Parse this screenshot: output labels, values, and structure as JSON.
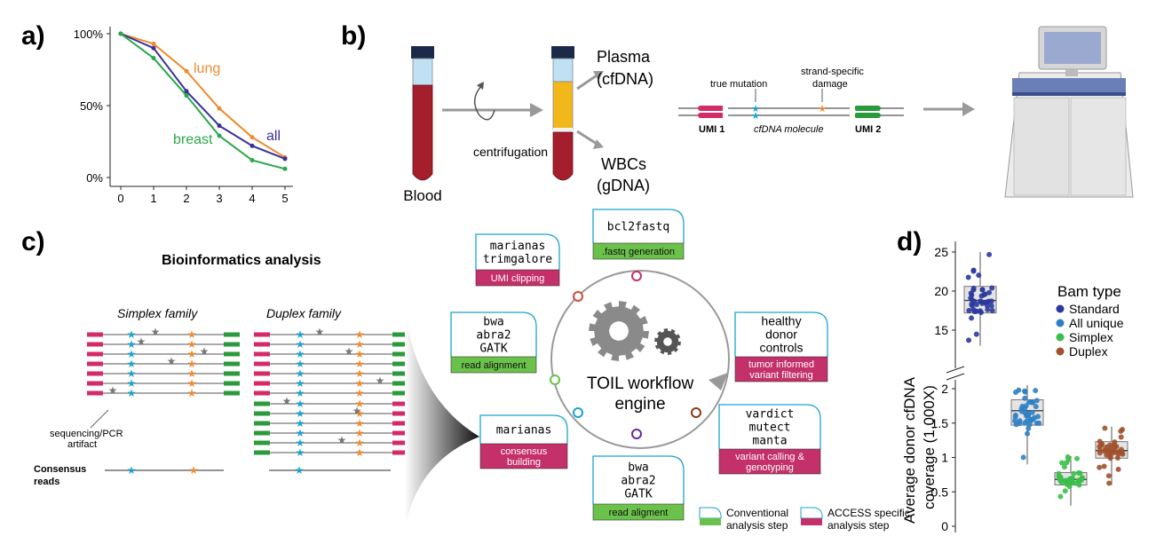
{
  "panels": {
    "a": "a)",
    "b": "b)",
    "c": "c)",
    "d": "d)"
  },
  "colors": {
    "lung": "#f08a2c",
    "all": "#3a2f9c",
    "breast": "#2aa84a",
    "umi": "#d42a6a",
    "green": "#2a9a3a",
    "cyan": "#1aa3d0",
    "orange": "#f08a2c",
    "step_green": "#6ac24a",
    "step_magenta": "#c4306a"
  },
  "panel_a": {
    "chart_data": {
      "type": "line",
      "x": [
        0,
        1,
        2,
        3,
        4,
        5
      ],
      "y_ticks": [
        "100%",
        "50%",
        "0%"
      ],
      "ylim": [
        0,
        100
      ],
      "series": [
        {
          "name": "lung",
          "values": [
            100,
            93,
            74,
            48,
            28,
            14
          ]
        },
        {
          "name": "all",
          "values": [
            100,
            90,
            60,
            36,
            22,
            13
          ]
        },
        {
          "name": "breast",
          "values": [
            100,
            83,
            57,
            29,
            12,
            6
          ]
        }
      ]
    }
  },
  "panel_b": {
    "blood": "Blood",
    "centrifugation": "centrifugation",
    "plasma": "Plasma",
    "cfdna": "(cfDNA)",
    "wbcs": "WBCs",
    "gdna": "(gDNA)",
    "true_mutation": "true mutation",
    "strand_damage_1": "strand-specific",
    "strand_damage_2": "damage",
    "umi1": "UMI 1",
    "molecule": "cfDNA molecule",
    "umi2": "UMI 2"
  },
  "panel_c": {
    "title": "Bioinformatics analysis",
    "simplex": "Simplex family",
    "duplex": "Duplex family",
    "artifact_1": "sequencing/PCR",
    "artifact_2": "artifact",
    "consensus_1": "Consensus",
    "consensus_2": "reads",
    "engine_1": "TOIL workflow",
    "engine_2": "engine",
    "steps": [
      {
        "tools": [
          "marianas",
          "trimgalore"
        ],
        "label": "UMI clipping",
        "kind": "access"
      },
      {
        "tools": [
          "bcl2fastq"
        ],
        "label": ".fastq generation",
        "kind": "conventional"
      },
      {
        "tools": [
          "bwa",
          "abra2",
          "GATK"
        ],
        "label": "read alignment",
        "kind": "conventional"
      },
      {
        "tools": [
          "healthy",
          "donor",
          "controls"
        ],
        "label_lines": [
          "tumor informed",
          "variant filtering"
        ],
        "kind": "access"
      },
      {
        "tools": [
          "marianas"
        ],
        "label_lines": [
          "consensus",
          "building"
        ],
        "kind": "access"
      },
      {
        "tools": [
          "vardict",
          "mutect",
          "manta"
        ],
        "label_lines": [
          "variant calling &",
          "genotyping"
        ],
        "kind": "access"
      },
      {
        "tools": [
          "bwa",
          "abra2",
          "GATK"
        ],
        "label": "read aligment",
        "kind": "conventional"
      }
    ],
    "legend": {
      "conventional_1": "Conventional",
      "conventional_2": "analysis step",
      "access_1": "ACCESS specific",
      "access_2": "analysis step"
    }
  },
  "panel_d": {
    "ylabel_1": "Average donor cfDNA",
    "ylabel_2": "coverage (1,000X)",
    "legend_title": "Bam type",
    "chart_data": {
      "type": "box",
      "categories": [
        "Standard",
        "All unique",
        "Simplex",
        "Duplex"
      ],
      "y_ticks_upper": [
        "25",
        "20",
        "15"
      ],
      "y_ticks_lower": [
        "2",
        "1.5",
        "1",
        "0.5",
        "0"
      ],
      "series": [
        {
          "name": "Standard",
          "color": "#2a3a9c",
          "q1": 17.2,
          "median": 18.8,
          "q3": 20.6,
          "min": 13,
          "max": 25
        },
        {
          "name": "All unique",
          "color": "#2f7fc4",
          "q1": 1.47,
          "median": 1.68,
          "q3": 1.84,
          "min": 0.9,
          "max": 2.05
        },
        {
          "name": "Simplex",
          "color": "#3cbf4a",
          "q1": 0.6,
          "median": 0.68,
          "q3": 0.78,
          "min": 0.3,
          "max": 1.02
        },
        {
          "name": "Duplex",
          "color": "#a0522d",
          "q1": 0.99,
          "median": 1.1,
          "q3": 1.23,
          "min": 0.6,
          "max": 1.45
        }
      ]
    }
  }
}
